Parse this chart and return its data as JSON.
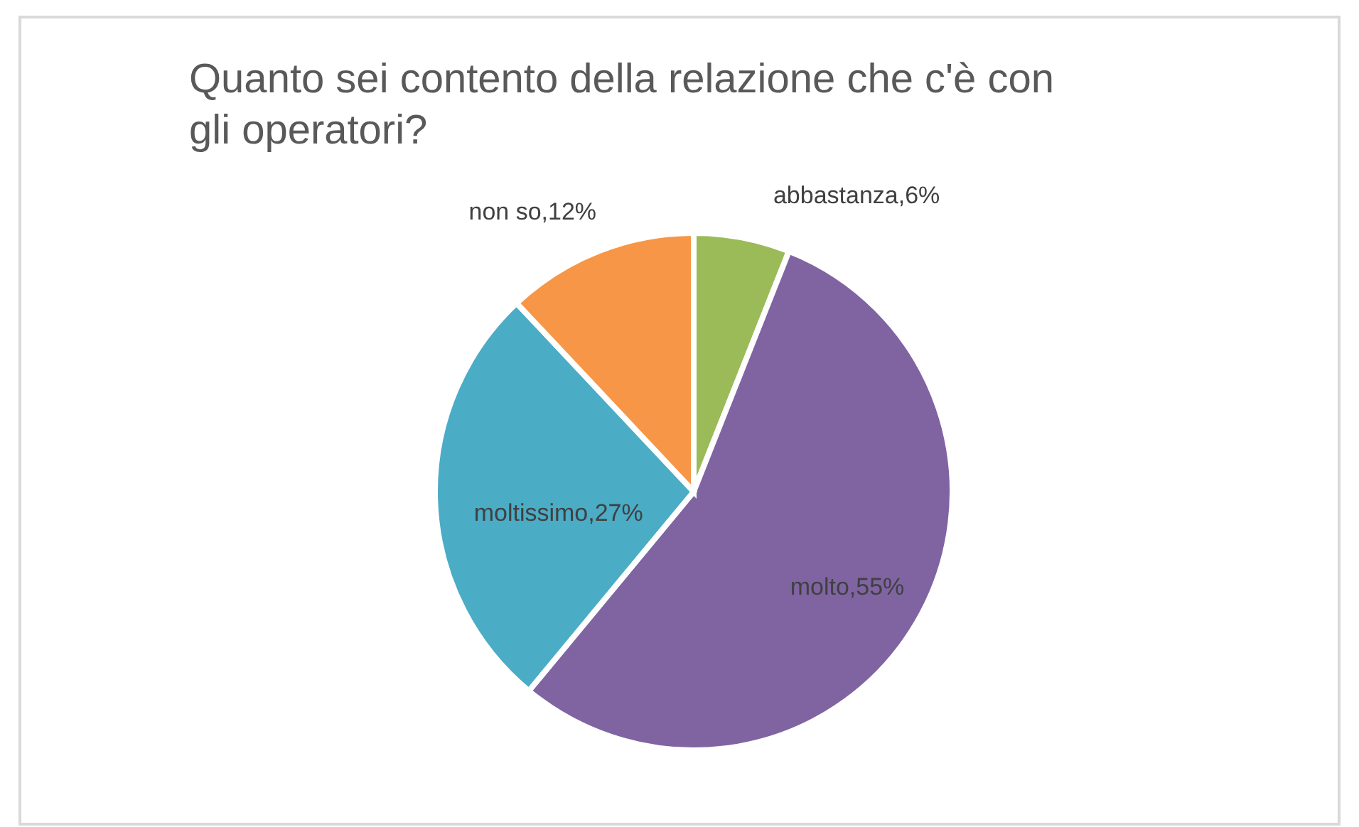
{
  "chart_data": {
    "type": "pie",
    "title": "Quanto sei contento della relazione che c'è con gli operatori?",
    "categories": [
      "abbastanza",
      "molto",
      "moltissimo",
      "non so"
    ],
    "values": [
      6,
      55,
      27,
      12
    ],
    "colors": [
      "#9bbb59",
      "#8064a2",
      "#4bacc6",
      "#f79646"
    ],
    "value_labels": [
      "6%",
      "55%",
      "27%",
      "12%"
    ]
  }
}
